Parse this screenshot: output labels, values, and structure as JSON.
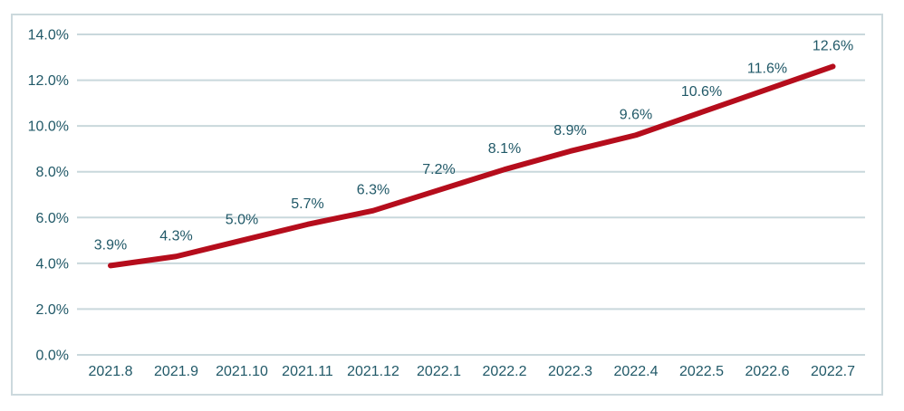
{
  "chart_data": {
    "type": "line",
    "title": "",
    "categories": [
      "2021.8",
      "2021.9",
      "2021.10",
      "2021.11",
      "2021.12",
      "2022.1",
      "2022.2",
      "2022.3",
      "2022.4",
      "2022.5",
      "2022.6",
      "2022.7"
    ],
    "series": [
      {
        "name": "rate",
        "values": [
          3.9,
          4.3,
          5.0,
          5.7,
          6.3,
          7.2,
          8.1,
          8.9,
          9.6,
          10.6,
          11.6,
          12.6
        ]
      }
    ],
    "data_labels": [
      "3.9%",
      "4.3%",
      "5.0%",
      "5.7%",
      "6.3%",
      "7.2%",
      "8.1%",
      "8.9%",
      "9.6%",
      "10.6%",
      "11.6%",
      "12.6%"
    ],
    "y_ticks": [
      "0.0%",
      "2.0%",
      "4.0%",
      "6.0%",
      "8.0%",
      "10.0%",
      "12.0%",
      "14.0%"
    ],
    "ylim": [
      0,
      14
    ],
    "y_step": 2,
    "grid": true,
    "legend": "none",
    "colors": {
      "line": "#b50d1c",
      "label_text": "#215968",
      "axis_text": "#215968",
      "gridline": "#c9d8dc",
      "frame_border": "#ccd9dd",
      "background": "#ffffff"
    }
  }
}
